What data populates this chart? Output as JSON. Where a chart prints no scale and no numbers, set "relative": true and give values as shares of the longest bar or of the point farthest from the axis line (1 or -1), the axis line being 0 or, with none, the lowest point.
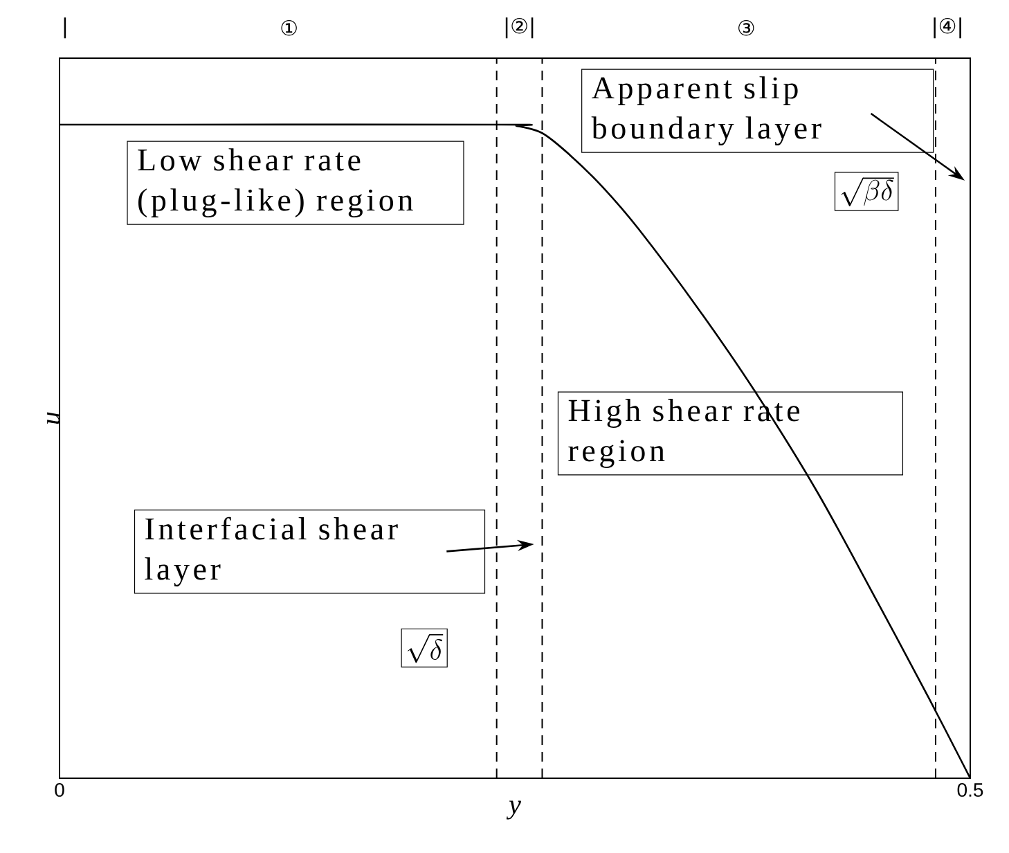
{
  "chart_data": {
    "type": "line",
    "xlabel": "y",
    "ylabel": "u",
    "relative": true,
    "x": [
      0,
      0.24,
      0.251,
      0.265,
      0.28,
      0.298,
      0.318,
      0.351,
      0.382,
      0.416,
      0.449,
      0.477,
      0.5
    ],
    "series": [
      {
        "color": "#000000",
        "values": [
          1,
          1,
          0.998,
          0.987,
          0.954,
          0.905,
          0.84,
          0.717,
          0.591,
          0.438,
          0.27,
          0.124,
          0
        ]
      }
    ],
    "xlim": [
      0,
      0.5
    ],
    "xticks": [
      0,
      0.5
    ],
    "ref_lines": [
      {
        "axis": "x",
        "value": 0.24,
        "color": "#000000",
        "line_style": "dashed"
      },
      {
        "axis": "x",
        "value": 0.265,
        "color": "#000000",
        "line_style": "dashed"
      },
      {
        "axis": "x",
        "value": 0.481,
        "color": "#000000",
        "line_style": "dashed"
      }
    ],
    "annotations": [
      "Low shear rate (plug-like) region",
      "High shear rate region",
      "Interfacial shear layer",
      "\\sqrt{\\delta}",
      "Apparent slip boundary layer",
      "\\sqrt{\\beta\\delta}",
      "|",
      "①",
      "|②|",
      "③",
      "|④|"
    ]
  }
}
